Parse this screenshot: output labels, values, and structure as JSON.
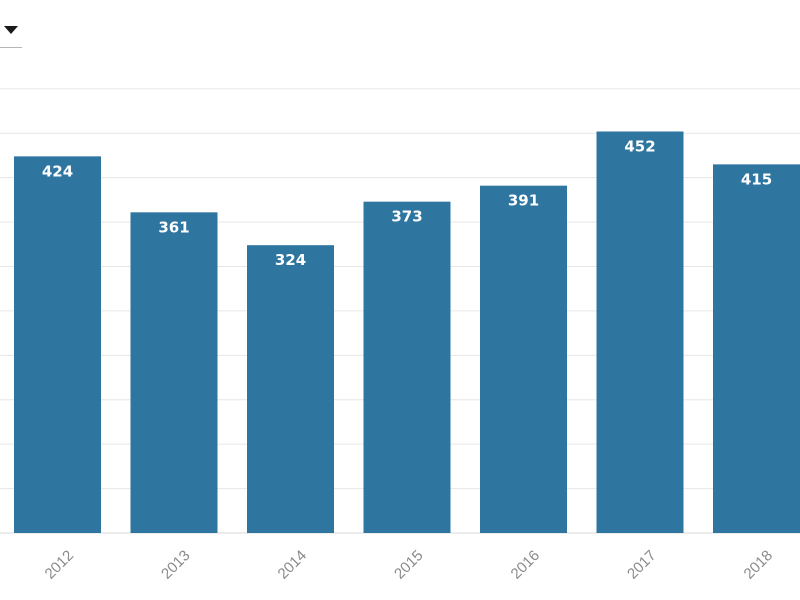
{
  "chart_data": {
    "type": "bar",
    "categories": [
      "2012",
      "2013",
      "2014",
      "2015",
      "2016",
      "2017",
      "2018"
    ],
    "values": [
      424,
      361,
      324,
      373,
      391,
      452,
      415
    ],
    "data_labels": [
      "424",
      "361",
      "324",
      "373",
      "391",
      "452",
      "415"
    ],
    "title": "",
    "xlabel": "",
    "ylabel": "",
    "ylim": [
      0,
      500
    ],
    "grid": true,
    "bar_color": "#2e75a0",
    "gridline_color": "#e6e6e6",
    "tick_label_color": "#8a8a8a",
    "tick_label_rotation": "diagonal"
  },
  "controls": {
    "dropdown_icon": "chevron-down-icon"
  }
}
